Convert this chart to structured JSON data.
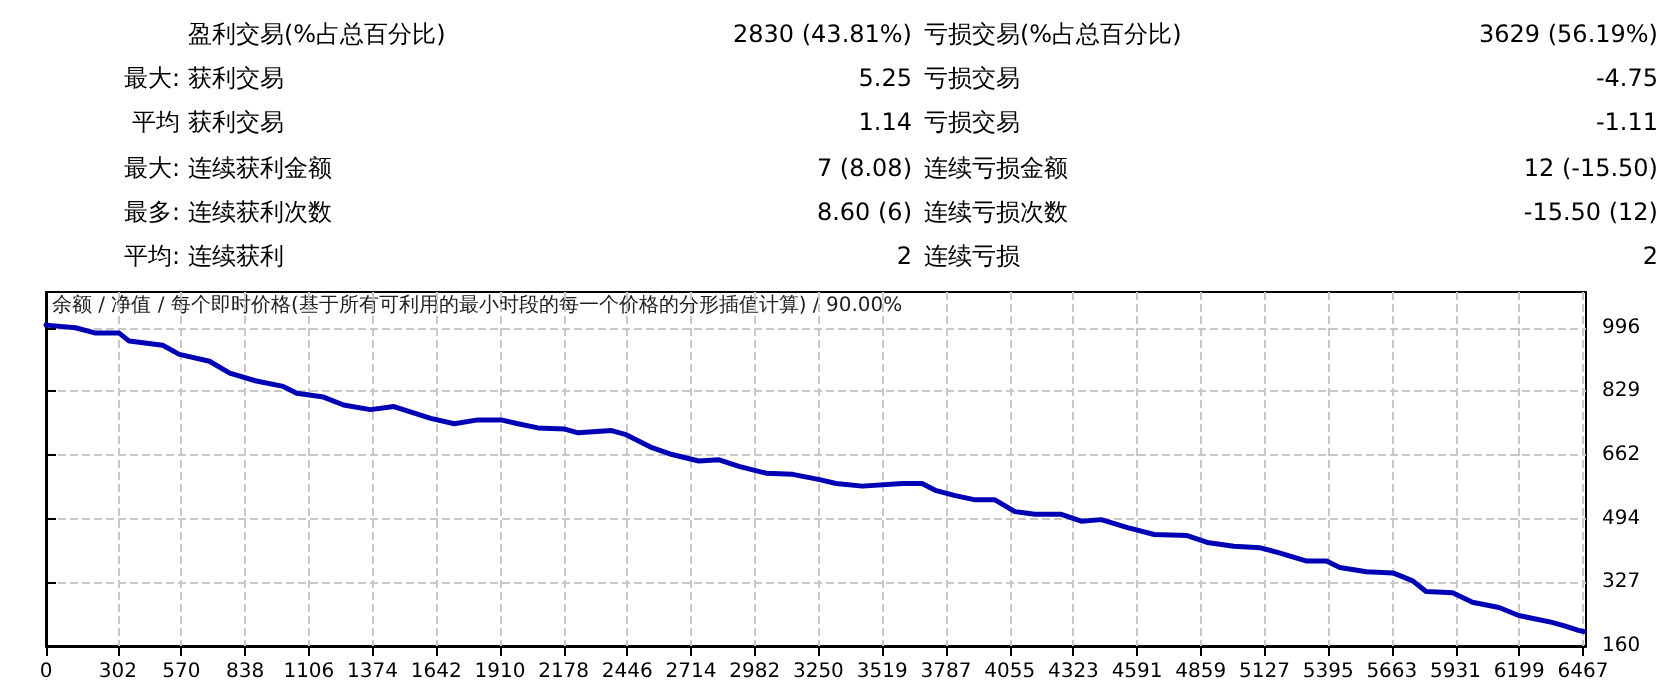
{
  "chart_data": {
    "type": "line",
    "annotations": [
      "盈利交易(%占总百分比)",
      "2830 (43.81%)",
      "亏损交易(%占总百分比)",
      "3629 (56.19%)",
      "最大: 获利交易",
      "5.25",
      "亏损交易",
      "-4.75",
      "平均 获利交易",
      "1.14",
      "亏损交易",
      "-1.11",
      "最大: 连续获利金额",
      "7 (8.08)",
      "连续亏损金额",
      "12 (-15.50)",
      "最多: 连续获利次数",
      "8.60 (6)",
      "连续亏损次数",
      "-15.50 (12)",
      "平均: 连续获利",
      "2",
      "连续亏损",
      "2",
      "余额 / 净值 / 每个即时价格(基于所有可利用的最小时段的每一个价格的分形插值计算) / 90.00%"
    ],
    "x": [
      0,
      124,
      209,
      308,
      350,
      491,
      561,
      688,
      773,
      885,
      998,
      1055,
      1168,
      1252,
      1365,
      1464,
      1619,
      1718,
      1817,
      1915,
      1986,
      2070,
      2183,
      2239,
      2380,
      2437,
      2550,
      2634,
      2747,
      2832,
      2916,
      3029,
      3142,
      3255,
      3324,
      3435,
      3603,
      3686,
      3742,
      3826,
      3910,
      3993,
      4077,
      4161,
      4272,
      4356,
      4440,
      4551,
      4663,
      4802,
      4886,
      4998,
      5109,
      5193,
      5305,
      5388,
      5444,
      5556,
      5668,
      5751,
      5807,
      5919,
      6002,
      6114,
      6197,
      6253,
      6337,
      6393,
      6448,
      6470
    ],
    "series": [
      {
        "color": "#0000b4",
        "values": [
          1003,
          996,
          982,
          982,
          961,
          950,
          926,
          908,
          877,
          856,
          842,
          824,
          814,
          793,
          781,
          789,
          758,
          744,
          754,
          754,
          744,
          733,
          730,
          720,
          726,
          716,
          681,
          663,
          646,
          649,
          632,
          614,
          611,
          597,
          587,
          580,
          587,
          587,
          569,
          555,
          544,
          544,
          513,
          506,
          506,
          488,
          492,
          471,
          453,
          450,
          432,
          422,
          418,
          404,
          383,
          383,
          366,
          355,
          352,
          331,
          303,
          300,
          275,
          261,
          240,
          233,
          222,
          212,
          201,
          198
        ]
      }
    ],
    "xlim": [
      0,
      6480
    ],
    "xticks": [
      0,
      302,
      570,
      838,
      1106,
      1374,
      1642,
      1910,
      2178,
      2446,
      2714,
      2982,
      3250,
      3519,
      3787,
      4055,
      4323,
      4591,
      4859,
      5127,
      5395,
      5663,
      5931,
      6199,
      6467
    ],
    "ylim": [
      160,
      1090
    ],
    "yticks": [
      160,
      327,
      494,
      662,
      829,
      996
    ],
    "grid": true,
    "marker": "none",
    "line_style": "solid"
  }
}
